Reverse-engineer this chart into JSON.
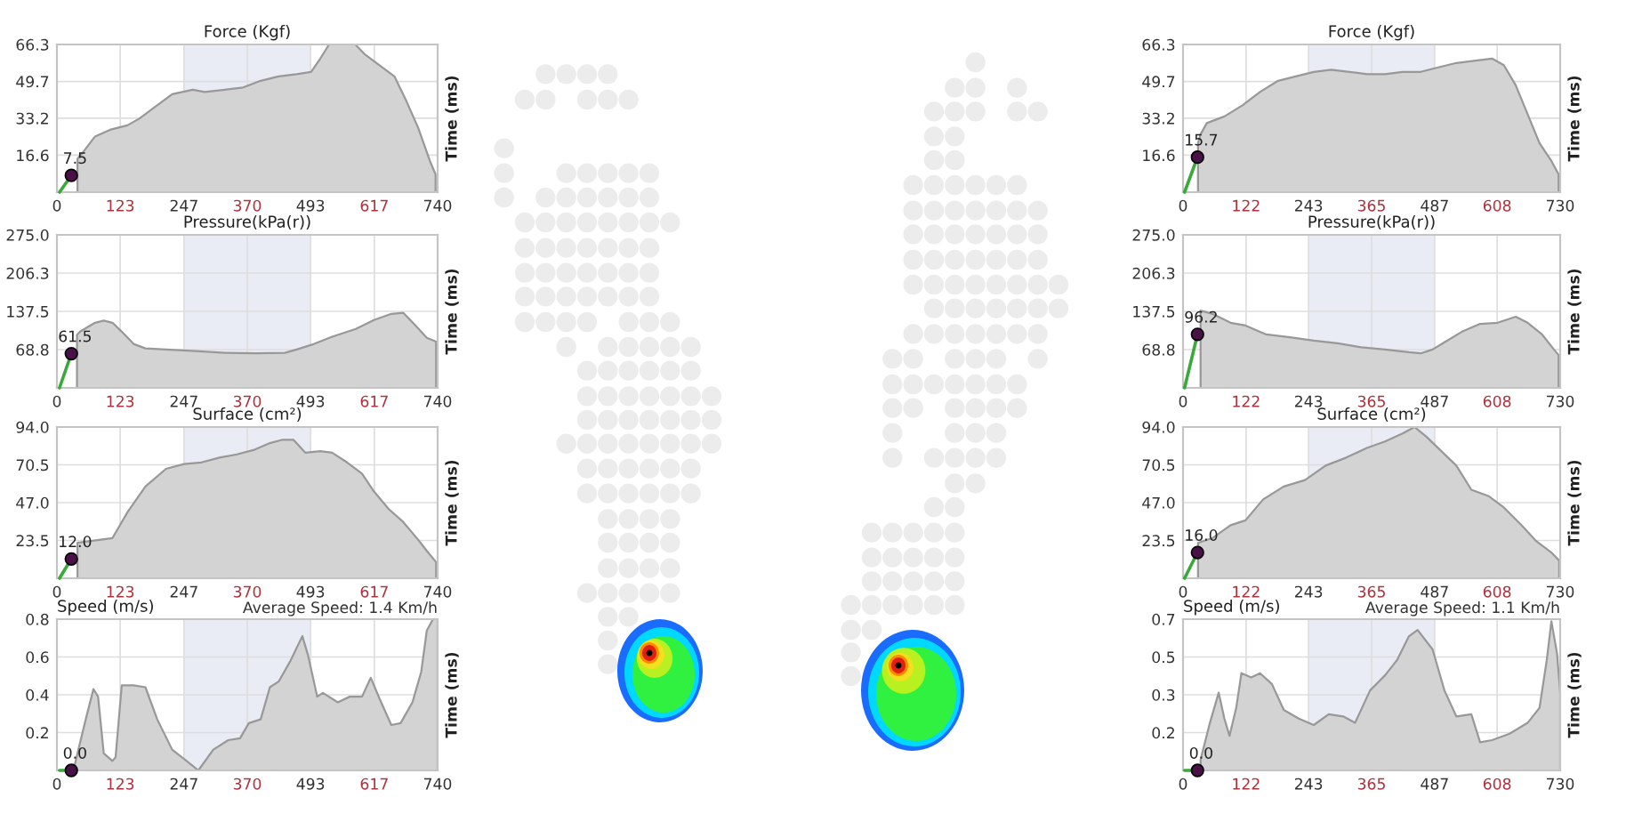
{
  "chart_data": [
    {
      "type": "area",
      "title": "Force (Kgf)",
      "y2label": "Time (ms)",
      "xlim": [
        0,
        740
      ],
      "xticks": [
        0,
        123,
        247,
        370,
        493,
        617,
        740
      ],
      "ylim": [
        0,
        66.3
      ],
      "yticks": [
        16.6,
        33.2,
        49.7,
        66.3
      ],
      "grid": true,
      "bands": [
        {
          "axis": "x",
          "from": 247,
          "to": 493,
          "color": "#e9ebf5"
        }
      ],
      "series": [
        {
          "color": "#d3d3d3",
          "x": [
            40,
            51,
            74,
            103,
            137,
            160,
            189,
            224,
            264,
            287,
            327,
            362,
            396,
            431,
            466,
            494,
            512,
            529,
            580,
            598,
            627,
            656,
            679,
            702,
            725,
            736
          ],
          "values": [
            15,
            18,
            25,
            28,
            30,
            33,
            38,
            44,
            46,
            45,
            46,
            47,
            50,
            52,
            53,
            54,
            60,
            66.3,
            66.3,
            62,
            57,
            52,
            41,
            29,
            14,
            8
          ]
        },
        {
          "type": "line",
          "color": "#3aa83a",
          "x": [
            5,
            28
          ],
          "values": [
            0,
            7.5
          ]
        },
        {
          "type": "scatter",
          "color": "#4a1048",
          "x": [
            28
          ],
          "values": [
            7.5
          ],
          "value_labels": [
            "7.5"
          ]
        }
      ]
    },
    {
      "type": "area",
      "title": "Pressure(kPa(r))",
      "y2label": "Time (ms)",
      "xlim": [
        0,
        740
      ],
      "xticks": [
        0,
        123,
        247,
        370,
        493,
        617,
        740
      ],
      "ylim": [
        0,
        275
      ],
      "yticks": [
        68.8,
        137.5,
        206.3,
        {
          "value": 275,
          "label": "275.0"
        }
      ],
      "grid": true,
      "bands": [
        {
          "axis": "x",
          "from": 247,
          "to": 493,
          "color": "#e9ebf5"
        }
      ],
      "series": [
        {
          "color": "#d3d3d3",
          "x": [
            39,
            45,
            74,
            91,
            108,
            126,
            149,
            172,
            212,
            270,
            327,
            385,
            443,
            466,
            500,
            535,
            581,
            616,
            650,
            673,
            696,
            719,
            737
          ],
          "values": [
            95,
            101,
            117,
            121,
            117,
            101,
            79,
            71,
            69,
            66,
            63,
            62,
            63,
            69,
            79,
            92,
            106,
            122,
            133,
            135,
            113,
            90,
            83
          ]
        },
        {
          "type": "line",
          "color": "#3aa83a",
          "x": [
            5,
            28
          ],
          "values": [
            0,
            61.5
          ]
        },
        {
          "type": "scatter",
          "color": "#4a1048",
          "x": [
            28
          ],
          "values": [
            61.5
          ],
          "value_labels": [
            "61.5"
          ]
        }
      ]
    },
    {
      "type": "area",
      "title": "Surface (cm²)",
      "y2label": "Time (ms)",
      "xlim": [
        0,
        740
      ],
      "xticks": [
        0,
        123,
        247,
        370,
        493,
        617,
        740
      ],
      "ylim": [
        0,
        94
      ],
      "yticks": [
        23.5,
        {
          "value": 47,
          "label": "47.0"
        },
        70.5,
        {
          "value": 94,
          "label": "94.0"
        }
      ],
      "grid": true,
      "bands": [
        {
          "axis": "x",
          "from": 247,
          "to": 493,
          "color": "#e9ebf5"
        }
      ],
      "series": [
        {
          "color": "#d3d3d3",
          "x": [
            40,
            108,
            137,
            172,
            212,
            247,
            281,
            316,
            350,
            385,
            414,
            437,
            460,
            483,
            512,
            535,
            564,
            593,
            616,
            645,
            673,
            702,
            719,
            737
          ],
          "values": [
            22,
            25,
            41,
            57,
            68,
            71,
            72,
            75,
            77,
            80,
            84,
            86,
            86,
            78,
            79,
            78,
            72,
            65,
            54,
            43,
            35,
            24,
            17,
            10
          ]
        },
        {
          "type": "line",
          "color": "#3aa83a",
          "x": [
            5,
            28
          ],
          "values": [
            0,
            12.0
          ]
        },
        {
          "type": "scatter",
          "color": "#4a1048",
          "x": [
            28
          ],
          "values": [
            12.0
          ],
          "value_labels": [
            "12.0"
          ]
        }
      ]
    },
    {
      "type": "area",
      "title": "Speed (m/s)",
      "subtitle": "Average Speed: 1.4 Km/h",
      "y2label": "Time (ms)",
      "xlim": [
        0,
        740
      ],
      "xticks": [
        0,
        123,
        247,
        370,
        493,
        617,
        740
      ],
      "ylim": [
        0,
        0.8
      ],
      "yticks": [
        0.2,
        0.4,
        0.6,
        0.8
      ],
      "grid": true,
      "bands": [
        {
          "axis": "x",
          "from": 247,
          "to": 493,
          "color": "#e9ebf5"
        }
      ],
      "series": [
        {
          "color": "#d3d3d3",
          "x": [
            34,
            39,
            56,
            71,
            80,
            91,
            108,
            114,
            126,
            149,
            172,
            195,
            224,
            252,
            275,
            304,
            333,
            356,
            373,
            396,
            414,
            431,
            454,
            477,
            488,
            506,
            517,
            546,
            569,
            593,
            610,
            627,
            650,
            668,
            691,
            708,
            719,
            731,
            740
          ],
          "values": [
            0.02,
            0.08,
            0.27,
            0.43,
            0.39,
            0.09,
            0.05,
            0.07,
            0.45,
            0.45,
            0.44,
            0.27,
            0.11,
            0.05,
            0.0,
            0.11,
            0.16,
            0.17,
            0.25,
            0.27,
            0.44,
            0.47,
            0.58,
            0.71,
            0.61,
            0.39,
            0.41,
            0.36,
            0.39,
            0.39,
            0.49,
            0.38,
            0.24,
            0.25,
            0.36,
            0.52,
            0.74,
            0.8,
            0.8
          ]
        },
        {
          "type": "line",
          "color": "#3aa83a",
          "x": [
            5,
            28
          ],
          "values": [
            0,
            0.0
          ]
        },
        {
          "type": "scatter",
          "color": "#4a1048",
          "x": [
            28
          ],
          "values": [
            0.0
          ],
          "value_labels": [
            "0.0"
          ]
        }
      ]
    },
    {
      "type": "area",
      "title": "Force (Kgf)",
      "y2label": "Time (ms)",
      "xlim": [
        0,
        730
      ],
      "xticks": [
        0,
        122,
        243,
        365,
        487,
        608,
        730
      ],
      "ylim": [
        0,
        66.3
      ],
      "yticks": [
        16.6,
        33.2,
        49.7,
        66.3
      ],
      "grid": true,
      "bands": [
        {
          "axis": "x",
          "from": 243,
          "to": 487,
          "color": "#e9ebf5"
        }
      ],
      "series": [
        {
          "color": "#d3d3d3",
          "x": [
            29,
            34,
            46,
            80,
            115,
            149,
            184,
            218,
            253,
            287,
            322,
            356,
            391,
            425,
            460,
            494,
            529,
            563,
            598,
            621,
            644,
            667,
            690,
            713,
            727
          ],
          "values": [
            22,
            26,
            31,
            34,
            39,
            45,
            50,
            52,
            54,
            55,
            54,
            53,
            53,
            54,
            54,
            56,
            58,
            59,
            60,
            57,
            48,
            35,
            22,
            14,
            8
          ]
        },
        {
          "type": "line",
          "color": "#3aa83a",
          "x": [
            3,
            28
          ],
          "values": [
            0,
            15.7
          ]
        },
        {
          "type": "scatter",
          "color": "#4a1048",
          "x": [
            28
          ],
          "values": [
            15.7
          ],
          "value_labels": [
            "15.7"
          ]
        }
      ]
    },
    {
      "type": "area",
      "title": "Pressure(kPa(r))",
      "y2label": "Time (ms)",
      "xlim": [
        0,
        730
      ],
      "xticks": [
        0,
        122,
        243,
        365,
        487,
        608,
        730
      ],
      "ylim": [
        0,
        275
      ],
      "yticks": [
        68.8,
        137.5,
        206.3,
        {
          "value": 275,
          "label": "275.0"
        }
      ],
      "grid": true,
      "bands": [
        {
          "axis": "x",
          "from": 243,
          "to": 487,
          "color": "#e9ebf5"
        }
      ],
      "series": [
        {
          "color": "#d3d3d3",
          "x": [
            34,
            57,
            92,
            121,
            161,
            207,
            253,
            299,
            345,
            391,
            437,
            460,
            483,
            506,
            540,
            575,
            609,
            644,
            667,
            695,
            718,
            727
          ],
          "values": [
            139,
            133,
            117,
            112,
            96,
            91,
            85,
            80,
            73,
            69,
            64,
            62,
            69,
            82,
            101,
            115,
            117,
            128,
            117,
            96,
            69,
            59
          ]
        },
        {
          "type": "line",
          "color": "#3aa83a",
          "x": [
            3,
            28
          ],
          "values": [
            0,
            96.2
          ]
        },
        {
          "type": "scatter",
          "color": "#4a1048",
          "x": [
            28
          ],
          "values": [
            96.2
          ],
          "value_labels": [
            "96.2"
          ]
        }
      ]
    },
    {
      "type": "area",
      "title": "Surface (cm²)",
      "y2label": "Time (ms)",
      "xlim": [
        0,
        730
      ],
      "xticks": [
        0,
        122,
        243,
        365,
        487,
        608,
        730
      ],
      "ylim": [
        0,
        94
      ],
      "yticks": [
        23.5,
        {
          "value": 47,
          "label": "47.0"
        },
        70.5,
        {
          "value": 94,
          "label": "94.0"
        }
      ],
      "grid": true,
      "bands": [
        {
          "axis": "x",
          "from": 243,
          "to": 487,
          "color": "#e9ebf5"
        }
      ],
      "series": [
        {
          "color": "#d3d3d3",
          "x": [
            29,
            57,
            92,
            121,
            155,
            195,
            236,
            276,
            316,
            356,
            391,
            425,
            448,
            471,
            500,
            529,
            558,
            592,
            621,
            655,
            684,
            713,
            728
          ],
          "values": [
            22,
            25,
            33,
            36,
            49,
            57,
            61,
            70,
            75,
            81,
            85,
            90,
            94,
            88,
            79,
            70,
            55,
            51,
            44,
            33,
            23,
            16,
            11
          ]
        },
        {
          "type": "line",
          "color": "#3aa83a",
          "x": [
            3,
            28
          ],
          "values": [
            0,
            16.0
          ]
        },
        {
          "type": "scatter",
          "color": "#4a1048",
          "x": [
            28
          ],
          "values": [
            16.0
          ],
          "value_labels": [
            "16.0"
          ]
        }
      ]
    },
    {
      "type": "area",
      "title": "Speed (m/s)",
      "subtitle": "Average Speed: 1.1 Km/h",
      "y2label": "Time (ms)",
      "xlim": [
        0,
        730
      ],
      "xticks": [
        0,
        122,
        243,
        365,
        487,
        608,
        730
      ],
      "ylim": [
        0,
        0.7
      ],
      "yticks": [
        {
          "value": 0.175,
          "label": "0.2"
        },
        {
          "value": 0.35,
          "label": "0.3"
        },
        {
          "value": 0.525,
          "label": "0.5"
        },
        0.7
      ],
      "grid": true,
      "bands": [
        {
          "axis": "x",
          "from": 243,
          "to": 487,
          "color": "#e9ebf5"
        }
      ],
      "series": [
        {
          "color": "#d3d3d3",
          "x": [
            34,
            52,
            69,
            80,
            90,
            103,
            113,
            132,
            149,
            172,
            195,
            224,
            253,
            282,
            310,
            333,
            362,
            391,
            414,
            437,
            454,
            483,
            506,
            529,
            558,
            575,
            598,
            632,
            667,
            690,
            704,
            713,
            724,
            730
          ],
          "values": [
            0.05,
            0.22,
            0.36,
            0.24,
            0.16,
            0.29,
            0.45,
            0.43,
            0.45,
            0.4,
            0.28,
            0.24,
            0.21,
            0.26,
            0.25,
            0.22,
            0.37,
            0.44,
            0.51,
            0.62,
            0.65,
            0.56,
            0.37,
            0.25,
            0.26,
            0.13,
            0.14,
            0.17,
            0.22,
            0.29,
            0.51,
            0.69,
            0.54,
            0.36
          ]
        },
        {
          "type": "line",
          "color": "#3aa83a",
          "x": [
            3,
            28
          ],
          "values": [
            0,
            0.0
          ]
        },
        {
          "type": "scatter",
          "color": "#4a1048",
          "x": [
            28
          ],
          "values": [
            0.0
          ],
          "value_labels": [
            "0.0"
          ]
        }
      ]
    }
  ]
}
